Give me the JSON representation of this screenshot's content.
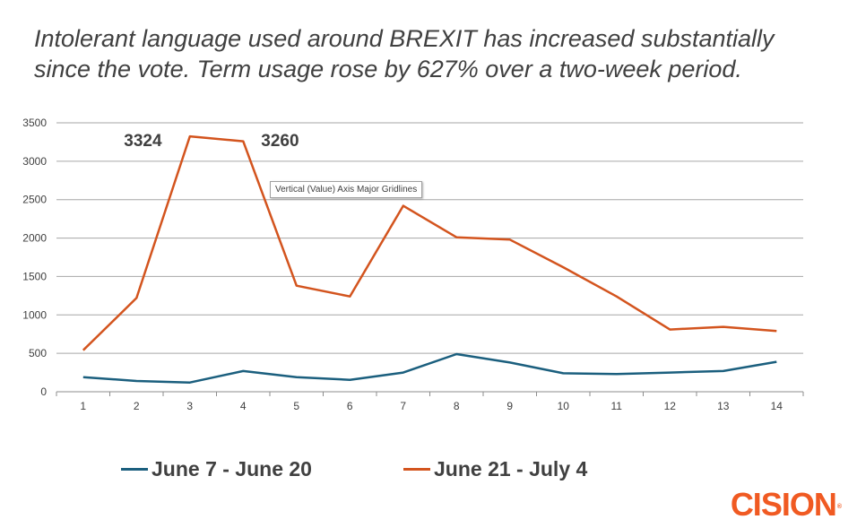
{
  "title_lines": [
    "Intolerant language used around BREXIT has increased substantially",
    "since the vote. Term usage rose by 627% over a two-week period."
  ],
  "tooltip": "Vertical (Value) Axis Major Gridlines",
  "logo": {
    "text": "CISION",
    "mark": "®",
    "color": "#f05a22"
  },
  "chart_data": {
    "type": "line",
    "title": "Intolerant language used around BREXIT has increased substantially since the vote. Term usage rose by 627% over a two-week period.",
    "xlabel": "",
    "ylabel": "",
    "categories": [
      "1",
      "2",
      "3",
      "4",
      "5",
      "6",
      "7",
      "8",
      "9",
      "10",
      "11",
      "12",
      "13",
      "14"
    ],
    "ylim": [
      0,
      3500
    ],
    "yticks": [
      0,
      500,
      1000,
      1500,
      2000,
      2500,
      3000,
      3500
    ],
    "grid": true,
    "legend_position": "bottom",
    "series": [
      {
        "name": "June 7 - June 20",
        "color": "#1b5f7e",
        "values": [
          190,
          140,
          120,
          270,
          190,
          155,
          250,
          490,
          380,
          240,
          230,
          250,
          270,
          390
        ]
      },
      {
        "name": "June 21 - July 4",
        "color": "#d3541e",
        "values": [
          540,
          1220,
          3324,
          3260,
          1380,
          1240,
          2420,
          2010,
          1980,
          1620,
          1240,
          810,
          845,
          790
        ]
      }
    ],
    "annotations": [
      {
        "text": "3324",
        "category": "3",
        "series": "June 21 - July 4"
      },
      {
        "text": "3260",
        "category": "4",
        "series": "June 21 - July 4"
      }
    ]
  }
}
